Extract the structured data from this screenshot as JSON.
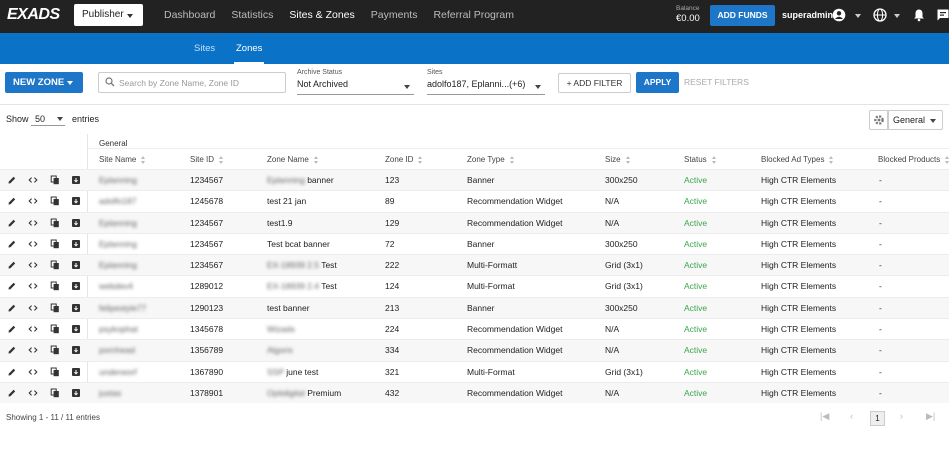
{
  "topbar": {
    "logo": "EXADS",
    "role": "Publisher",
    "nav": [
      "Dashboard",
      "Statistics",
      "Sites & Zones",
      "Payments",
      "Referral Program"
    ],
    "active_nav": "Sites & Zones",
    "balance_label": "Balance",
    "balance_value": "€0.00",
    "add_funds": "ADD FUNDS",
    "username": "superadmin"
  },
  "subnav": {
    "tabs": [
      "Sites",
      "Zones"
    ],
    "active": "Zones"
  },
  "toolbar": {
    "new_zone": "NEW ZONE",
    "search_placeholder": "Search by Zone Name, Zone ID",
    "archive_label": "Archive Status",
    "archive_value": "Not Archived",
    "sites_label": "Sites",
    "sites_value": "adolfo187, Eplanni...(+6)",
    "add_filter": "+ ADD FILTER",
    "apply": "APPLY",
    "reset": "RESET FILTERS"
  },
  "entries": {
    "show": "Show",
    "count": "50",
    "suffix": "entries",
    "column_set": "General"
  },
  "table": {
    "group": "General",
    "columns": [
      "Site Name",
      "Site ID",
      "Zone Name",
      "Zone ID",
      "Zone Type",
      "Size",
      "Status",
      "Blocked Ad Types",
      "Blocked Products"
    ],
    "rows": [
      {
        "site_name": "Eplanning",
        "site_id": "1234567",
        "zone_blur": "Eplanning",
        "zone_name": "banner",
        "zone_id": "123",
        "zone_type": "Banner",
        "size": "300x250",
        "status": "Active",
        "blocked_ad_types": "High CTR Elements",
        "blocked_products": "-"
      },
      {
        "site_name": "adolfo187",
        "site_id": "1245678",
        "zone_blur": "",
        "zone_name": "test 21 jan",
        "zone_id": "89",
        "zone_type": "Recommendation Widget",
        "size": "N/A",
        "status": "Active",
        "blocked_ad_types": "High CTR Elements",
        "blocked_products": "-"
      },
      {
        "site_name": "Eplanning",
        "site_id": "1234567",
        "zone_blur": "",
        "zone_name": "test1.9",
        "zone_id": "129",
        "zone_type": "Recommendation Widget",
        "size": "N/A",
        "status": "Active",
        "blocked_ad_types": "High CTR Elements",
        "blocked_products": "-"
      },
      {
        "site_name": "Eplanning",
        "site_id": "1234567",
        "zone_blur": "",
        "zone_name": "Test bcat banner",
        "zone_id": "72",
        "zone_type": "Banner",
        "size": "300x250",
        "status": "Active",
        "blocked_ad_types": "High CTR Elements",
        "blocked_products": "-"
      },
      {
        "site_name": "Eplanning",
        "site_id": "1234567",
        "zone_blur": "EX-18939 2.5",
        "zone_name": "Test",
        "zone_id": "222",
        "zone_type": "Multi-Formatt",
        "size": "Grid (3x1)",
        "status": "Active",
        "blocked_ad_types": "High CTR Elements",
        "blocked_products": "-"
      },
      {
        "site_name": "webdev4",
        "site_id": "1289012",
        "zone_blur": "EX-18939 2.4",
        "zone_name": "Test",
        "zone_id": "124",
        "zone_type": "Multi-Format",
        "size": "Grid (3x1)",
        "status": "Active",
        "blocked_ad_types": "High CTR Elements",
        "blocked_products": "-"
      },
      {
        "site_name": "felipestyle77",
        "site_id": "1290123",
        "zone_blur": "",
        "zone_name": "test banner",
        "zone_id": "213",
        "zone_type": "Banner",
        "size": "300x250",
        "status": "Active",
        "blocked_ad_types": "High CTR Elements",
        "blocked_products": "-"
      },
      {
        "site_name": "psykophat",
        "site_id": "1345678",
        "zone_blur": "Wizads",
        "zone_name": "",
        "zone_id": "224",
        "zone_type": "Recommendation Widget",
        "size": "N/A",
        "status": "Active",
        "blocked_ad_types": "High CTR Elements",
        "blocked_products": "-"
      },
      {
        "site_name": "pornhead",
        "site_id": "1356789",
        "zone_blur": "Algorix",
        "zone_name": "",
        "zone_id": "334",
        "zone_type": "Recommendation Widget",
        "size": "N/A",
        "status": "Active",
        "blocked_ad_types": "High CTR Elements",
        "blocked_products": "-"
      },
      {
        "site_name": "underworf",
        "site_id": "1367890",
        "zone_blur": "SSP",
        "zone_name": "june test",
        "zone_id": "321",
        "zone_type": "Multi-Format",
        "size": "Grid (3x1)",
        "status": "Active",
        "blocked_ad_types": "High CTR Elements",
        "blocked_products": "-"
      },
      {
        "site_name": "justas",
        "site_id": "1378901",
        "zone_blur": "Optidigital",
        "zone_name": "Premium",
        "zone_id": "432",
        "zone_type": "Recommendation Widget",
        "size": "N/A",
        "status": "Active",
        "blocked_ad_types": "High CTR Elements",
        "blocked_products": "-"
      }
    ]
  },
  "footer": {
    "showing": "Showing 1 - 11 / 11 entries",
    "current_page": "1"
  },
  "colors": {
    "topbar": "#222222",
    "brand_blue": "#0a73c8",
    "button_blue": "#1e76c8",
    "status_active": "#3aa64b"
  },
  "icons": [
    "edit-icon",
    "code-icon",
    "copy-icon",
    "archive-icon",
    "search-icon",
    "settings-icon",
    "account-icon",
    "globe-icon",
    "bell-icon",
    "feedback-icon"
  ]
}
